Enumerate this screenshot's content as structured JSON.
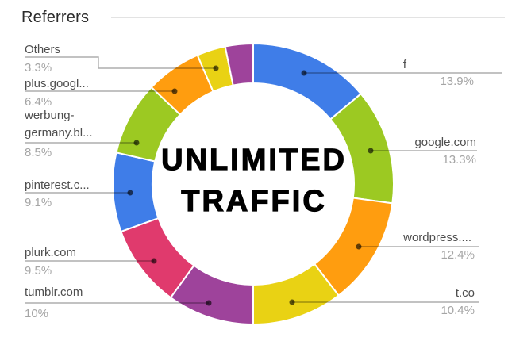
{
  "title": "Referrers",
  "center_text": {
    "line1": "UNLIMITED",
    "line2": "TRAFFIC"
  },
  "palette": {
    "blue": "#3f7de8",
    "green": "#9cc922",
    "orange": "#ff9d0f",
    "yellow": "#e9d214",
    "purple": "#9e439b",
    "pink": "#e03a6d"
  },
  "chart_data": {
    "type": "pie",
    "subtype": "donut",
    "title": "Referrers",
    "annotation_center": "UNLIMITED TRAFFIC",
    "start_angle_deg": 0,
    "direction": "clockwise",
    "legend_position": "callout-labels-around-donut",
    "slices": [
      {
        "label": "f",
        "pct": 13.9,
        "pct_label": "13.9%",
        "color": "#3f7de8"
      },
      {
        "label": "google.com",
        "pct": 13.3,
        "pct_label": "13.3%",
        "color": "#9cc922"
      },
      {
        "label": "wordpress....",
        "pct": 12.4,
        "pct_label": "12.4%",
        "color": "#ff9d0f"
      },
      {
        "label": "t.co",
        "pct": 10.4,
        "pct_label": "10.4%",
        "color": "#e9d214"
      },
      {
        "label": "tumblr.com",
        "pct": 10,
        "pct_label": "10%",
        "color": "#9e439b"
      },
      {
        "label": "plurk.com",
        "pct": 9.5,
        "pct_label": "9.5%",
        "color": "#e03a6d"
      },
      {
        "label": "pinterest.c...",
        "pct": 9.1,
        "pct_label": "9.1%",
        "color": "#3f7de8"
      },
      {
        "label": "werbung-germany.bl...",
        "pct": 8.5,
        "pct_label": "8.5%",
        "color": "#9cc922",
        "label_lines": [
          "werbung-",
          "germany.bl..."
        ]
      },
      {
        "label": "plus.googl...",
        "pct": 6.4,
        "pct_label": "6.4%",
        "color": "#ff9d0f"
      },
      {
        "label": "Others",
        "pct": 3.3,
        "pct_label": "3.3%",
        "color": "#e9d214"
      },
      {
        "label": "",
        "pct": null,
        "pct_label": "",
        "color": "#9e439b"
      }
    ]
  }
}
